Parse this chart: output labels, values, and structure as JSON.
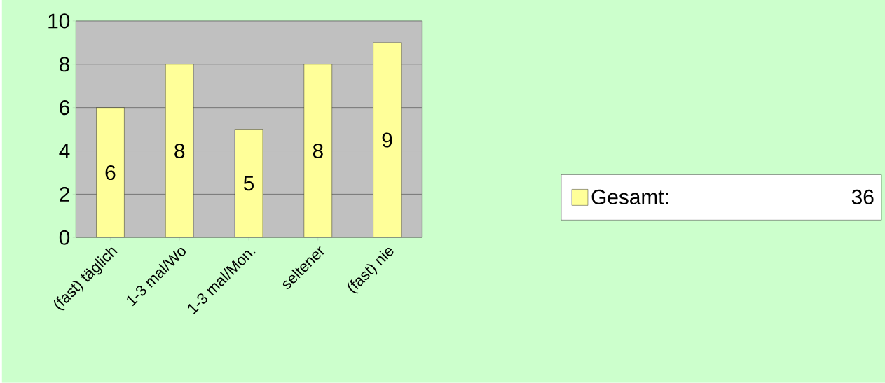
{
  "chart_data": {
    "type": "bar",
    "categories": [
      "(fast) täglich",
      "1-3 mal/Wo",
      "1-3 mal/Mon.",
      "seltener",
      "(fast) nie"
    ],
    "series": [
      {
        "name": "Gesamt:",
        "color": "#ffff99",
        "values": [
          6,
          8,
          5,
          8,
          9
        ]
      }
    ],
    "ylim": [
      0,
      10
    ],
    "yticks": [
      0,
      2,
      4,
      6,
      8,
      10
    ],
    "grid": "y",
    "data_labels": true,
    "legend": "right",
    "annotations": [
      "36"
    ]
  }
}
